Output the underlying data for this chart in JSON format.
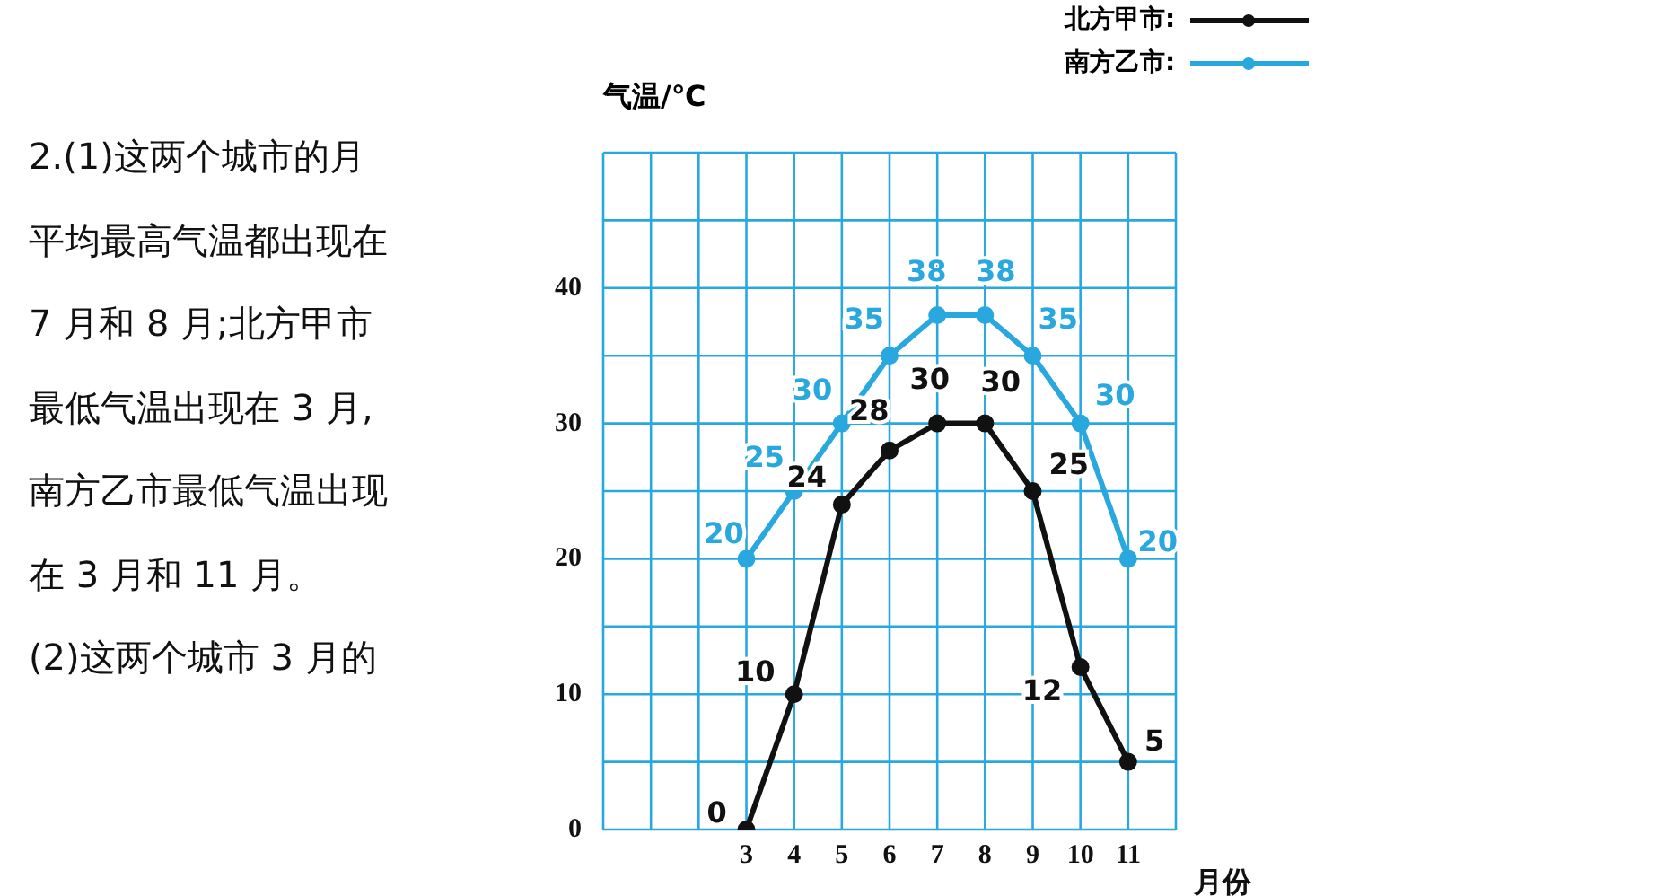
{
  "chart_data": {
    "type": "line",
    "ylabel": "气温/℃",
    "xlabel": "月份",
    "annotations": [
      "2.(1)这两个城市的月",
      "平均最高气温都出现在",
      "7 月和 8 月;北方甲市",
      "最低气温出现在 3 月,",
      "南方乙市最低气温出现",
      "在 3 月和 11 月。",
      "(2)这两个城市 3 月的"
    ],
    "x": [
      3,
      4,
      5,
      6,
      7,
      8,
      9,
      10,
      11
    ],
    "series": [
      {
        "name": "北方甲市:",
        "color": "#111111",
        "values": [
          0,
          10,
          24,
          28,
          30,
          30,
          25,
          12,
          5
        ]
      },
      {
        "name": "南方乙市:",
        "color": "#29a8e0",
        "values": [
          20,
          25,
          30,
          35,
          38,
          38,
          35,
          30,
          20
        ]
      }
    ],
    "xlim": [
      0,
      12
    ],
    "xticks": [
      {
        "value": 0,
        "label": null
      },
      {
        "value": 1,
        "label": null
      },
      {
        "value": 2,
        "label": null
      },
      3,
      4,
      5,
      6,
      7,
      8,
      9,
      10,
      11,
      {
        "value": 12,
        "label": null
      }
    ],
    "ylim": [
      0,
      50
    ],
    "yticks": [
      0,
      {
        "value": 5,
        "label": null
      },
      10,
      {
        "value": 15,
        "label": null
      },
      20,
      {
        "value": 25,
        "label": null
      },
      30,
      {
        "value": 35,
        "label": null
      },
      40,
      {
        "value": 45,
        "label": null
      },
      {
        "value": 50,
        "label": null
      }
    ],
    "grid": true,
    "legend": "top right",
    "marker": "circle",
    "line_style": "solid",
    "data_labels": true
  }
}
